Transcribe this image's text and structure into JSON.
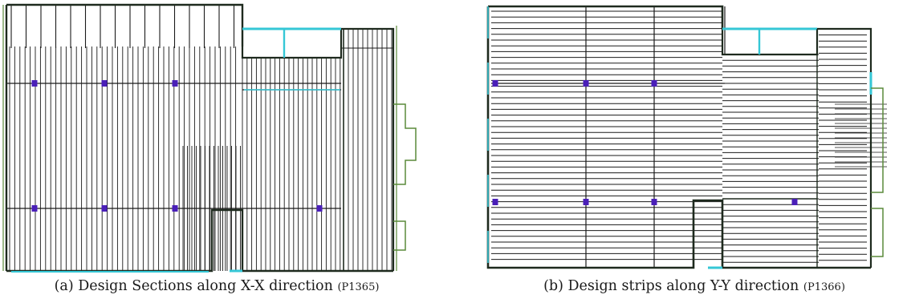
{
  "figures": [
    {
      "id": "a",
      "caption_main": "(a) Design Sections along X-X direction",
      "caption_ref": "(P1365)"
    },
    {
      "id": "b",
      "caption_main": "(b) Design strips along Y-Y direction",
      "caption_ref": "(P1366)"
    }
  ],
  "colors": {
    "wall_outline": "#1e2a1e",
    "cyan_edge": "#35c7d6",
    "green_edge": "#5a8a3a",
    "strip_line": "#1a1a1a",
    "column_marker": "#4a1fb8"
  }
}
